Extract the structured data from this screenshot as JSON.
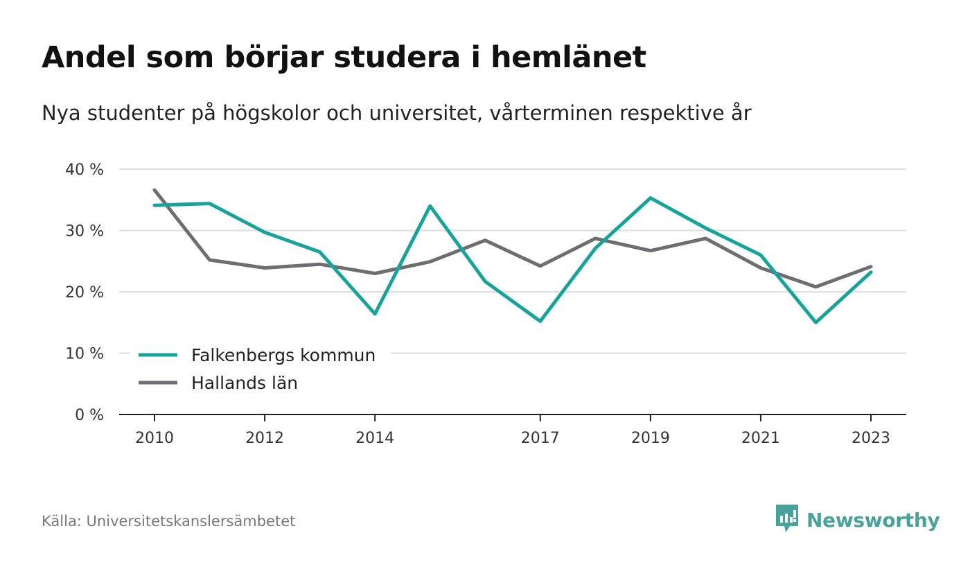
{
  "header": {
    "title": "Andel som börjar studera i hemlänet",
    "subtitle": "Nya studenter på högskolor och universitet, vårterminen respektive år"
  },
  "footer": {
    "source": "Källa: Universitetskanslersämbetet",
    "brand": "Newsworthy",
    "brand_icon": "newsworthy-logo-icon",
    "brand_color": "#46a29b"
  },
  "chart_data": {
    "type": "line",
    "x": [
      2010,
      2011,
      2012,
      2013,
      2014,
      2015,
      2016,
      2017,
      2018,
      2019,
      2020,
      2021,
      2022,
      2023
    ],
    "x_tick_labels": [
      "2010",
      "2012",
      "2014",
      "2017",
      "2019",
      "2021",
      "2023"
    ],
    "y_tick_labels": [
      "0 %",
      "10 %",
      "20 %",
      "30 %",
      "40 %"
    ],
    "ylim": [
      0,
      40
    ],
    "grid": true,
    "legend_position": "bottom-left",
    "series": [
      {
        "name": "Falkenbergs kommun",
        "color": "#16a39a",
        "values": [
          34.1,
          34.4,
          29.7,
          26.5,
          16.4,
          34.0,
          21.7,
          15.2,
          27.1,
          35.3,
          30.4,
          26.0,
          15.0,
          23.2
        ]
      },
      {
        "name": "Hallands län",
        "color": "#6e6d72",
        "values": [
          36.6,
          25.2,
          23.9,
          24.5,
          23.0,
          24.9,
          28.4,
          24.2,
          28.7,
          26.7,
          28.7,
          23.9,
          20.8,
          24.1
        ]
      }
    ]
  }
}
